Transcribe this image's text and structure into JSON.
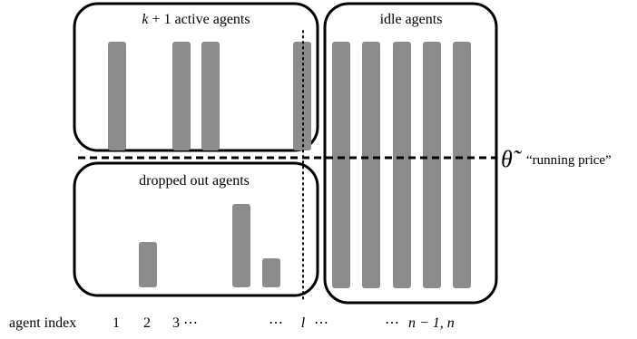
{
  "boxes": {
    "active": {
      "label_k": "k",
      "label_rest": " + 1 active agents"
    },
    "idle": {
      "label": "idle agents"
    },
    "dropped": {
      "label": "dropped out agents"
    }
  },
  "threshold": {
    "symbol": "θ̃",
    "caption": "“running price”"
  },
  "axis": {
    "prefix": "agent index",
    "tick_1": "1",
    "tick_2": "2",
    "tick_3": "3 ⋯",
    "tick_l_dots_left": "⋯",
    "tick_l": "l",
    "tick_l_dots_right": "⋯",
    "tick_n_dots": "⋯",
    "tick_n": "n − 1, n"
  },
  "colors": {
    "bar": "#8c8c8c",
    "box_stroke": "#000000"
  }
}
